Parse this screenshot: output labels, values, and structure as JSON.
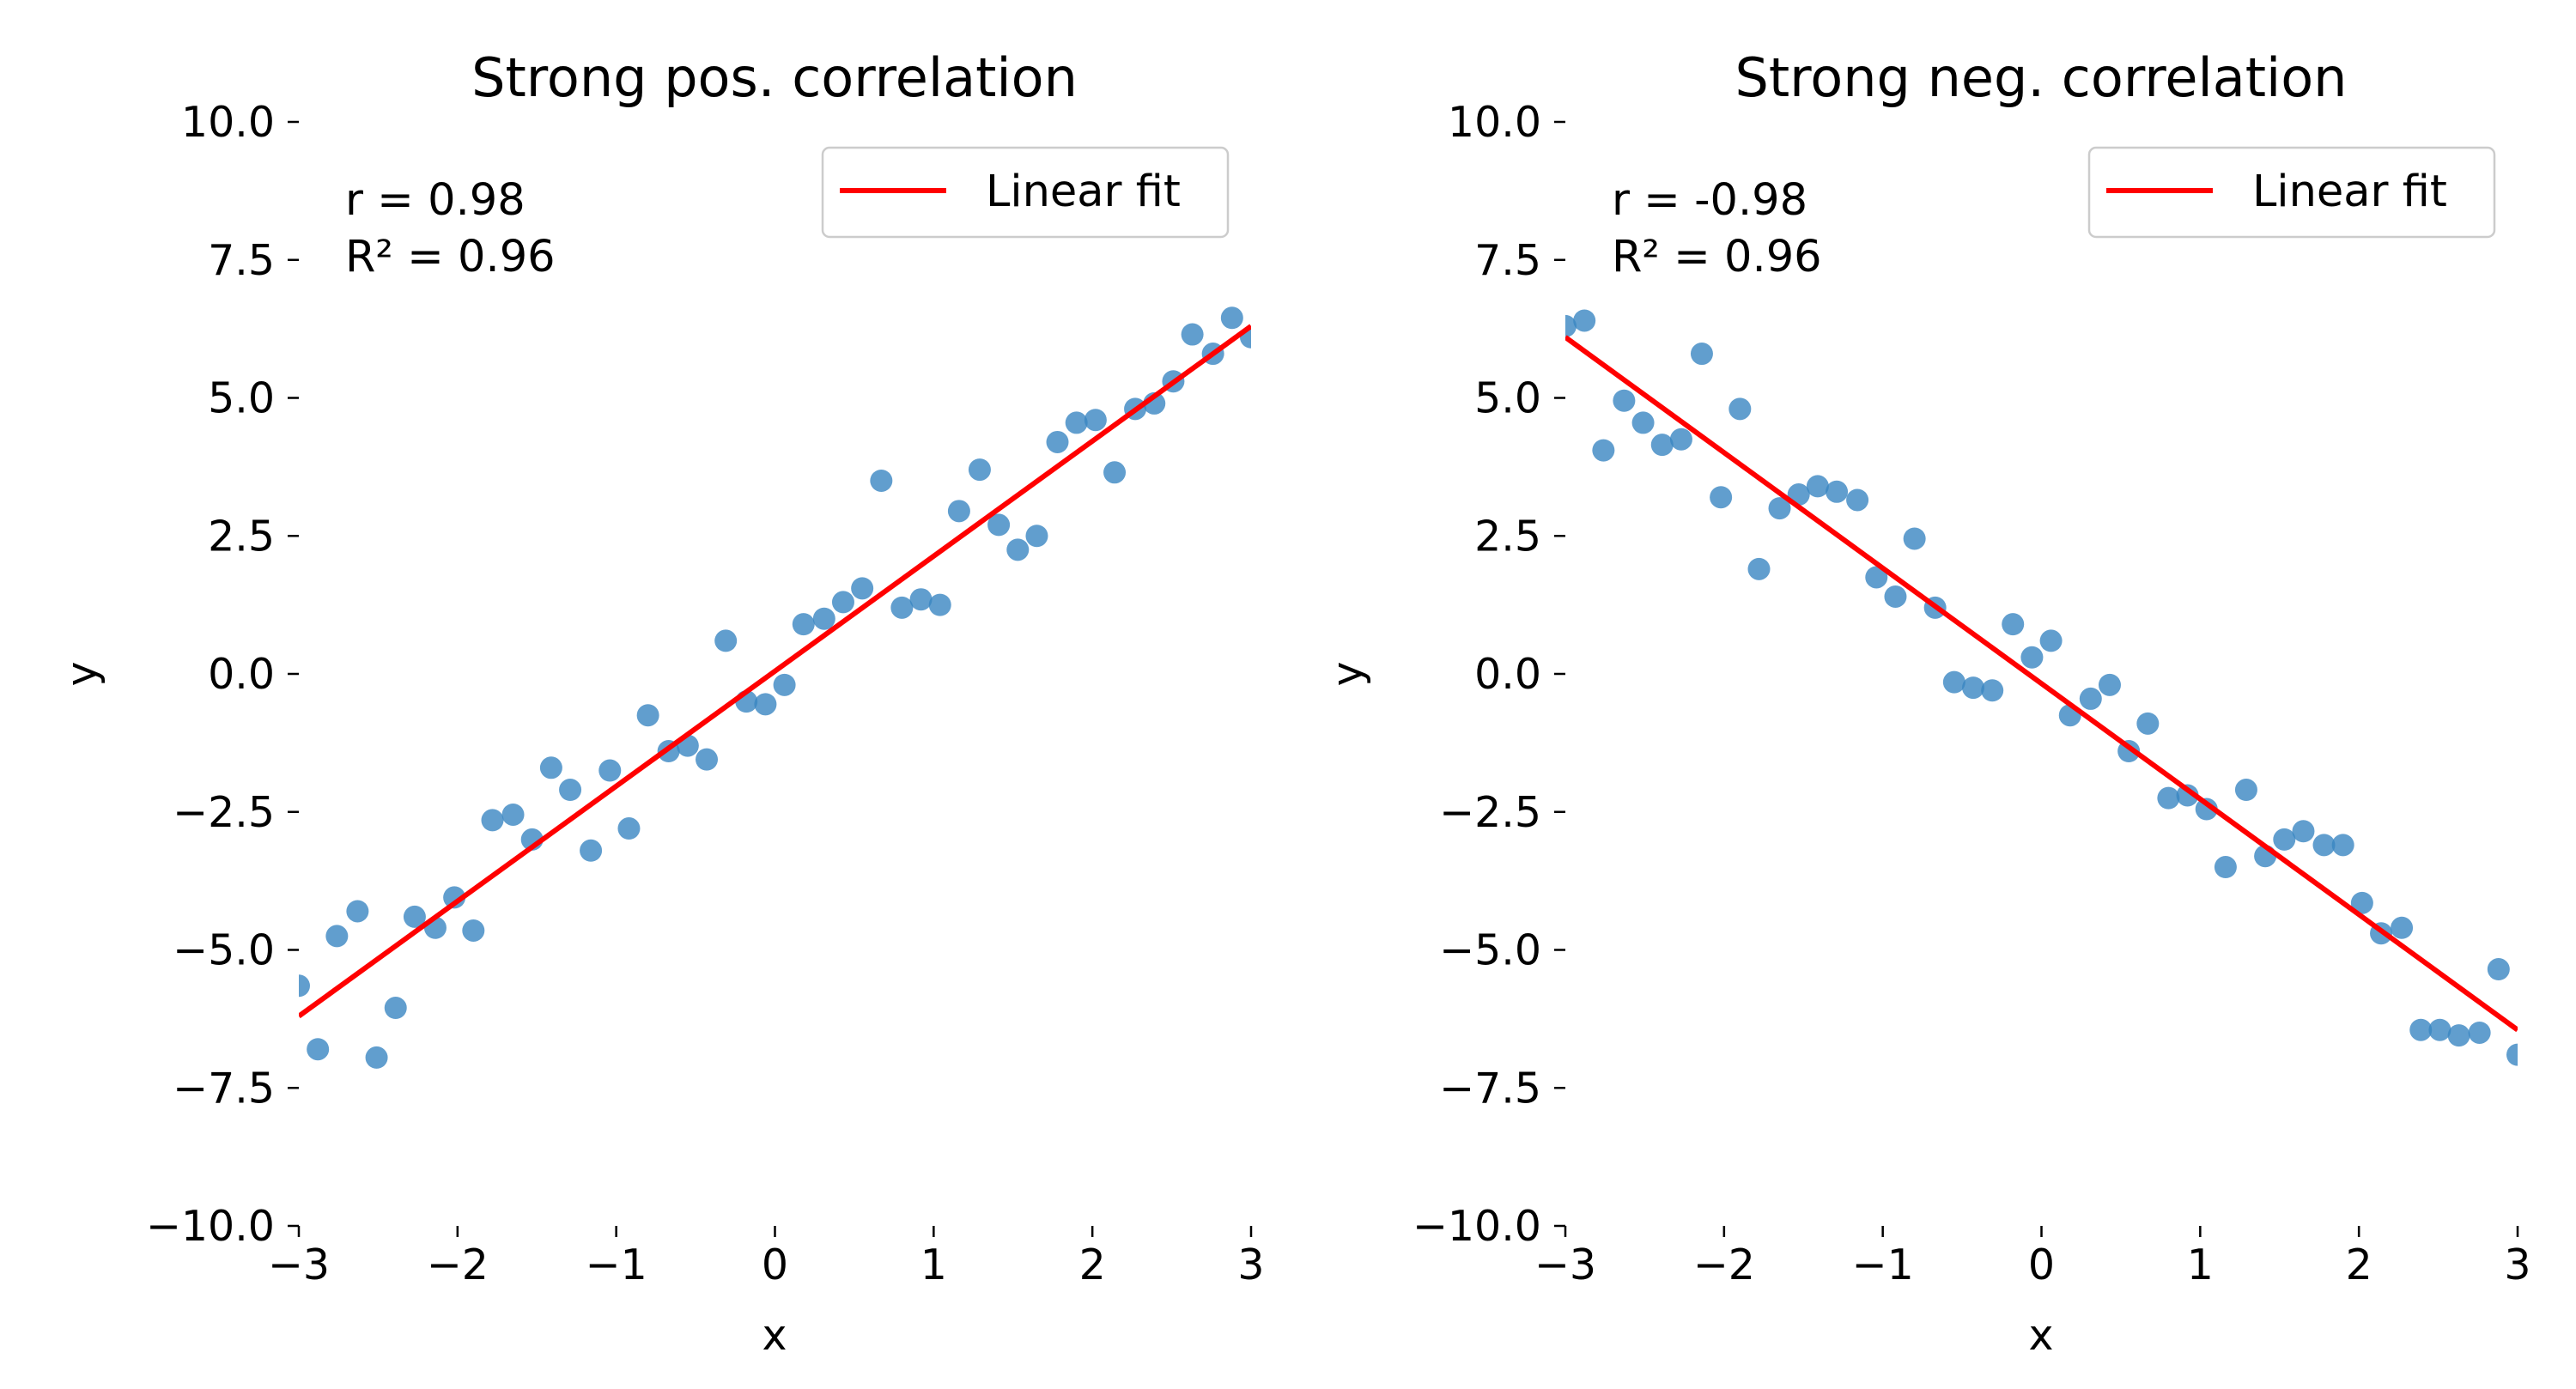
{
  "chart_data": [
    {
      "type": "scatter",
      "title": "Strong pos. correlation",
      "xlabel": "x",
      "ylabel": "y",
      "xlim": [
        -3,
        3
      ],
      "ylim": [
        -10,
        10
      ],
      "xticks": [
        -3,
        -2,
        -1,
        0,
        1,
        2,
        3
      ],
      "xtick_labels": [
        "−3",
        "−2",
        "−1",
        "0",
        "1",
        "2",
        "3"
      ],
      "yticks": [
        10,
        7.5,
        5,
        2.5,
        0,
        -2.5,
        -5,
        -7.5,
        -10
      ],
      "ytick_labels": [
        "10.0",
        "7.5",
        "5.0",
        "2.5",
        "0.0",
        "−2.5",
        "−5.0",
        "−7.5",
        "−10.0"
      ],
      "grid": false,
      "legend_position": "top-right",
      "annotations": [
        "r = 0.98",
        "R² = 0.96"
      ],
      "series": [
        {
          "type": "scatter",
          "color": "#3a86c2",
          "points": [
            [
              -3.0,
              -5.65
            ],
            [
              -2.88,
              -6.8
            ],
            [
              -2.76,
              -4.75
            ],
            [
              -2.63,
              -4.3
            ],
            [
              -2.51,
              -6.95
            ],
            [
              -2.39,
              -6.05
            ],
            [
              -2.27,
              -4.4
            ],
            [
              -2.14,
              -4.6
            ],
            [
              -2.02,
              -4.05
            ],
            [
              -1.9,
              -4.65
            ],
            [
              -1.78,
              -2.65
            ],
            [
              -1.65,
              -2.55
            ],
            [
              -1.53,
              -3.0
            ],
            [
              -1.41,
              -1.7
            ],
            [
              -1.29,
              -2.1
            ],
            [
              -1.16,
              -3.2
            ],
            [
              -1.04,
              -1.75
            ],
            [
              -0.92,
              -2.8
            ],
            [
              -0.8,
              -0.75
            ],
            [
              -0.67,
              -1.4
            ],
            [
              -0.55,
              -1.3
            ],
            [
              -0.43,
              -1.55
            ],
            [
              -0.31,
              0.6
            ],
            [
              -0.18,
              -0.5
            ],
            [
              -0.06,
              -0.55
            ],
            [
              0.06,
              -0.2
            ],
            [
              0.18,
              0.9
            ],
            [
              0.31,
              1.0
            ],
            [
              0.43,
              1.3
            ],
            [
              0.55,
              1.55
            ],
            [
              0.67,
              3.5
            ],
            [
              0.8,
              1.2
            ],
            [
              0.92,
              1.35
            ],
            [
              1.04,
              1.25
            ],
            [
              1.16,
              2.95
            ],
            [
              1.29,
              3.7
            ],
            [
              1.41,
              2.7
            ],
            [
              1.53,
              2.25
            ],
            [
              1.65,
              2.5
            ],
            [
              1.78,
              4.2
            ],
            [
              1.9,
              4.55
            ],
            [
              2.02,
              4.6
            ],
            [
              2.14,
              3.65
            ],
            [
              2.27,
              4.8
            ],
            [
              2.39,
              4.9
            ],
            [
              2.51,
              5.3
            ],
            [
              2.63,
              6.15
            ],
            [
              2.76,
              5.8
            ],
            [
              2.88,
              6.45
            ],
            [
              3.0,
              6.1
            ]
          ]
        },
        {
          "type": "line",
          "name": "Linear fit",
          "color": "#ff0000",
          "points": [
            [
              -3,
              -6.2
            ],
            [
              3,
              6.3
            ]
          ]
        }
      ]
    },
    {
      "type": "scatter",
      "title": "Strong neg. correlation",
      "xlabel": "x",
      "ylabel": "y",
      "xlim": [
        -3,
        3
      ],
      "ylim": [
        -10,
        10
      ],
      "xticks": [
        -3,
        -2,
        -1,
        0,
        1,
        2,
        3
      ],
      "xtick_labels": [
        "−3",
        "−2",
        "−1",
        "0",
        "1",
        "2",
        "3"
      ],
      "yticks": [
        10,
        7.5,
        5,
        2.5,
        0,
        -2.5,
        -5,
        -7.5,
        -10
      ],
      "ytick_labels": [
        "10.0",
        "7.5",
        "5.0",
        "2.5",
        "0.0",
        "−2.5",
        "−5.0",
        "−7.5",
        "−10.0"
      ],
      "grid": false,
      "legend_position": "top-right",
      "annotations": [
        "r = -0.98",
        "R² = 0.96"
      ],
      "series": [
        {
          "type": "scatter",
          "color": "#3a86c2",
          "points": [
            [
              -3.0,
              6.3
            ],
            [
              -2.88,
              6.4
            ],
            [
              -2.76,
              4.05
            ],
            [
              -2.63,
              4.95
            ],
            [
              -2.51,
              4.55
            ],
            [
              -2.39,
              4.15
            ],
            [
              -2.27,
              4.25
            ],
            [
              -2.14,
              5.8
            ],
            [
              -2.02,
              3.2
            ],
            [
              -1.9,
              4.8
            ],
            [
              -1.78,
              1.9
            ],
            [
              -1.65,
              3.0
            ],
            [
              -1.53,
              3.25
            ],
            [
              -1.41,
              3.4
            ],
            [
              -1.29,
              3.3
            ],
            [
              -1.16,
              3.15
            ],
            [
              -1.04,
              1.75
            ],
            [
              -0.92,
              1.4
            ],
            [
              -0.8,
              2.45
            ],
            [
              -0.67,
              1.2
            ],
            [
              -0.55,
              -0.15
            ],
            [
              -0.43,
              -0.25
            ],
            [
              -0.31,
              -0.3
            ],
            [
              -0.18,
              0.9
            ],
            [
              -0.06,
              0.3
            ],
            [
              0.06,
              0.6
            ],
            [
              0.18,
              -0.75
            ],
            [
              0.31,
              -0.45
            ],
            [
              0.43,
              -0.2
            ],
            [
              0.55,
              -1.4
            ],
            [
              0.67,
              -0.9
            ],
            [
              0.8,
              -2.25
            ],
            [
              0.92,
              -2.2
            ],
            [
              1.04,
              -2.45
            ],
            [
              1.16,
              -3.5
            ],
            [
              1.29,
              -2.1
            ],
            [
              1.41,
              -3.3
            ],
            [
              1.53,
              -3.0
            ],
            [
              1.65,
              -2.85
            ],
            [
              1.78,
              -3.1
            ],
            [
              1.9,
              -3.1
            ],
            [
              2.02,
              -4.15
            ],
            [
              2.14,
              -4.7
            ],
            [
              2.27,
              -4.6
            ],
            [
              2.39,
              -6.45
            ],
            [
              2.51,
              -6.45
            ],
            [
              2.63,
              -6.55
            ],
            [
              2.76,
              -6.5
            ],
            [
              2.88,
              -5.35
            ],
            [
              3.0,
              -6.9
            ]
          ]
        },
        {
          "type": "line",
          "name": "Linear fit",
          "color": "#ff0000",
          "points": [
            [
              -3,
              6.1
            ],
            [
              3,
              -6.45
            ]
          ]
        }
      ]
    }
  ]
}
